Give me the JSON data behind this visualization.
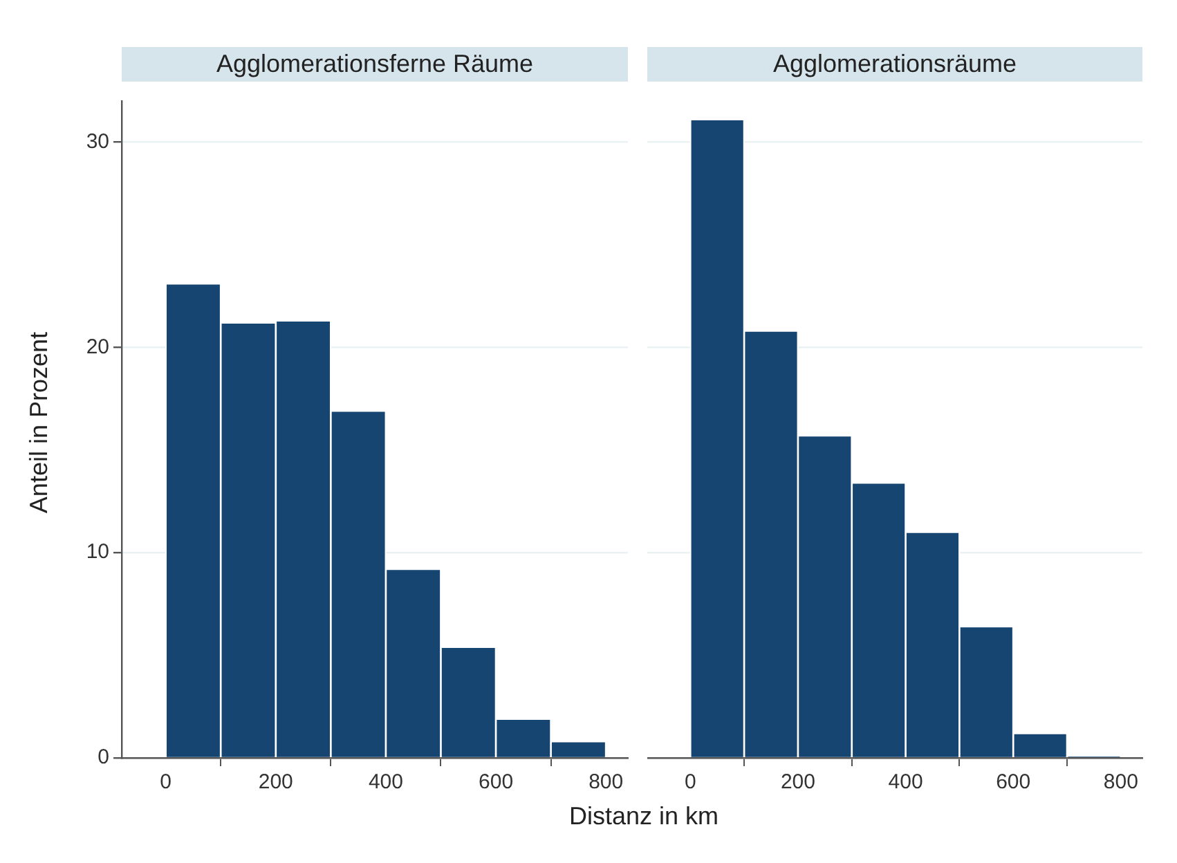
{
  "chart_data": [
    {
      "type": "histogram",
      "title": "Agglomerationsferne Räume",
      "xlabel": "Distanz in km",
      "ylabel": "Anteil in Prozent",
      "bins": [
        0,
        100,
        200,
        300,
        400,
        500,
        600,
        700,
        800
      ],
      "values": [
        23.1,
        21.2,
        21.3,
        16.9,
        9.2,
        5.4,
        1.9,
        0.8
      ],
      "color": "#154570",
      "xlim": [
        -80,
        840
      ],
      "xticks": [
        0,
        200,
        400,
        600,
        800
      ],
      "ylim": [
        0,
        32
      ],
      "yticks": [
        0,
        10,
        20,
        30
      ],
      "grid": "y",
      "legend": false
    },
    {
      "type": "histogram",
      "title": "Agglomerationsräume",
      "bins": [
        0,
        100,
        200,
        300,
        400,
        500,
        600,
        700,
        800
      ],
      "values": [
        31.1,
        20.8,
        15.7,
        13.4,
        11.0,
        6.4,
        1.2,
        0.05
      ],
      "color": "#154570",
      "xlim": [
        -80,
        840
      ],
      "xticks": [
        0,
        200,
        400,
        600,
        800
      ],
      "yticks": [
        0,
        10,
        20,
        30
      ],
      "grid": "y",
      "legend": false,
      "tick_labels": "x"
    }
  ]
}
